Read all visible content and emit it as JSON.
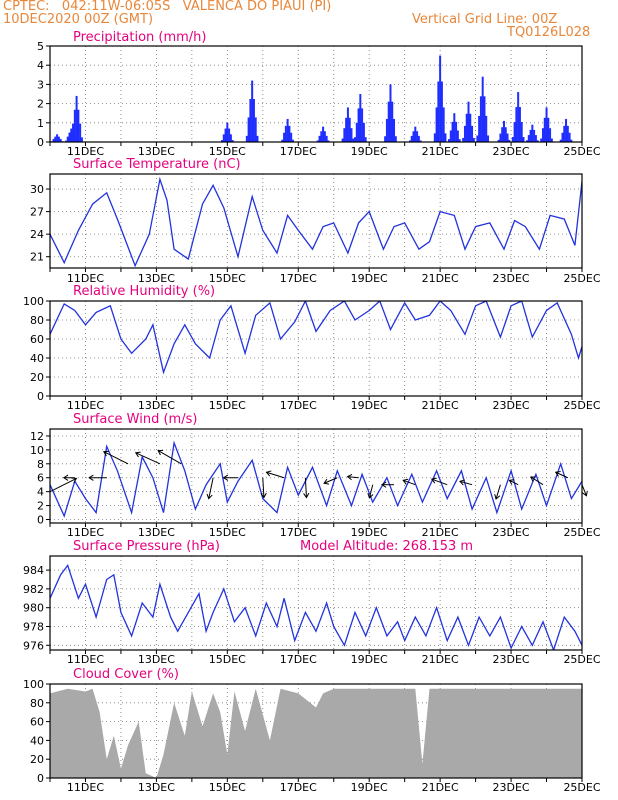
{
  "header": {
    "line1": "CPTEC:   042:11W-06:05S   VALENCA DO PIAUI (PI)",
    "line2": "10DEC2020 00Z (GMT)",
    "grid_note": "Vertical Grid Line: 00Z",
    "run_code": "TQ0126L028"
  },
  "model_altitude": "Model Altitude: 268.153 m",
  "colors": {
    "header": "#e8873a",
    "title": "#e6007e",
    "line": "#2233dd",
    "bar": "#1f2eff",
    "cloud": "#a9a9a9",
    "arrow": "#000000"
  },
  "chart_data": [
    {
      "type": "bar",
      "title": "Precipitation (mm/h)",
      "ylim": [
        0,
        5
      ],
      "yticks": [
        0,
        1,
        2,
        3,
        4,
        5
      ],
      "xlabel_ticks": [
        "11DEC",
        "13DEC",
        "15DEC",
        "17DEC",
        "19DEC",
        "21DEC",
        "23DEC",
        "25DEC"
      ],
      "xlim_days": [
        10,
        25
      ],
      "grid": true,
      "peaks": [
        {
          "day": 10.2,
          "value": 0.4
        },
        {
          "day": 10.6,
          "value": 0.7
        },
        {
          "day": 10.75,
          "value": 2.4
        },
        {
          "day": 15.0,
          "value": 1.0
        },
        {
          "day": 15.7,
          "value": 3.2
        },
        {
          "day": 16.7,
          "value": 1.2
        },
        {
          "day": 17.7,
          "value": 0.8
        },
        {
          "day": 18.4,
          "value": 1.8
        },
        {
          "day": 18.75,
          "value": 2.5
        },
        {
          "day": 19.6,
          "value": 3.0
        },
        {
          "day": 20.3,
          "value": 0.8
        },
        {
          "day": 21.0,
          "value": 4.5
        },
        {
          "day": 21.4,
          "value": 1.5
        },
        {
          "day": 21.8,
          "value": 2.1
        },
        {
          "day": 22.2,
          "value": 3.4
        },
        {
          "day": 22.8,
          "value": 1.1
        },
        {
          "day": 23.2,
          "value": 2.6
        },
        {
          "day": 23.6,
          "value": 0.9
        },
        {
          "day": 24.0,
          "value": 1.8
        },
        {
          "day": 24.55,
          "value": 1.2
        }
      ]
    },
    {
      "type": "line",
      "title": "Surface Temperature (nC)",
      "ylim": [
        19.5,
        32
      ],
      "yticks": [
        21,
        24,
        27,
        30
      ],
      "xlabel_ticks": [
        "11DEC",
        "13DEC",
        "15DEC",
        "17DEC",
        "19DEC",
        "21DEC",
        "23DEC",
        "25DEC"
      ],
      "xlim_days": [
        10,
        25
      ],
      "grid": true,
      "points": [
        [
          10.0,
          24.0
        ],
        [
          10.4,
          20.2
        ],
        [
          10.8,
          24.5
        ],
        [
          11.2,
          28.0
        ],
        [
          11.6,
          29.5
        ],
        [
          11.9,
          26.0
        ],
        [
          12.4,
          19.8
        ],
        [
          12.8,
          24.0
        ],
        [
          13.1,
          31.3
        ],
        [
          13.3,
          28.5
        ],
        [
          13.5,
          22.0
        ],
        [
          13.9,
          20.7
        ],
        [
          14.3,
          28.0
        ],
        [
          14.6,
          30.5
        ],
        [
          14.9,
          27.5
        ],
        [
          15.3,
          21.0
        ],
        [
          15.7,
          29.0
        ],
        [
          16.0,
          24.5
        ],
        [
          16.4,
          21.5
        ],
        [
          16.7,
          26.5
        ],
        [
          17.0,
          24.5
        ],
        [
          17.4,
          22.0
        ],
        [
          17.7,
          25.0
        ],
        [
          18.0,
          25.5
        ],
        [
          18.4,
          21.5
        ],
        [
          18.7,
          25.5
        ],
        [
          19.0,
          27.0
        ],
        [
          19.4,
          22.0
        ],
        [
          19.7,
          25.0
        ],
        [
          20.0,
          25.5
        ],
        [
          20.4,
          22.0
        ],
        [
          20.7,
          23.0
        ],
        [
          21.0,
          27.0
        ],
        [
          21.4,
          26.5
        ],
        [
          21.7,
          22.0
        ],
        [
          22.0,
          25.0
        ],
        [
          22.4,
          25.5
        ],
        [
          22.8,
          22.0
        ],
        [
          23.1,
          25.8
        ],
        [
          23.4,
          25.0
        ],
        [
          23.8,
          22.0
        ],
        [
          24.1,
          26.5
        ],
        [
          24.5,
          26.0
        ],
        [
          24.8,
          22.5
        ],
        [
          25.0,
          31.0
        ]
      ]
    },
    {
      "type": "line",
      "title": "Relative Humidity (%)",
      "ylim": [
        0,
        100
      ],
      "yticks": [
        0,
        20,
        40,
        60,
        80,
        100
      ],
      "xlabel_ticks": [
        "11DEC",
        "13DEC",
        "15DEC",
        "17DEC",
        "19DEC",
        "21DEC",
        "23DEC",
        "25DEC"
      ],
      "xlim_days": [
        10,
        25
      ],
      "grid": true,
      "points": [
        [
          10.0,
          65.0
        ],
        [
          10.4,
          97.0
        ],
        [
          10.7,
          90.0
        ],
        [
          11.0,
          75.0
        ],
        [
          11.3,
          88.0
        ],
        [
          11.7,
          95.0
        ],
        [
          12.0,
          60.0
        ],
        [
          12.3,
          45.0
        ],
        [
          12.7,
          60.0
        ],
        [
          12.9,
          75.0
        ],
        [
          13.2,
          25.0
        ],
        [
          13.5,
          55.0
        ],
        [
          13.8,
          75.0
        ],
        [
          14.1,
          55.0
        ],
        [
          14.5,
          40.0
        ],
        [
          14.8,
          80.0
        ],
        [
          15.1,
          95.0
        ],
        [
          15.5,
          45.0
        ],
        [
          15.8,
          85.0
        ],
        [
          16.2,
          98.0
        ],
        [
          16.5,
          60.0
        ],
        [
          16.9,
          78.0
        ],
        [
          17.2,
          100.0
        ],
        [
          17.5,
          68.0
        ],
        [
          17.9,
          90.0
        ],
        [
          18.3,
          100.0
        ],
        [
          18.6,
          80.0
        ],
        [
          19.0,
          90.0
        ],
        [
          19.3,
          100.0
        ],
        [
          19.6,
          70.0
        ],
        [
          20.0,
          98.0
        ],
        [
          20.3,
          80.0
        ],
        [
          20.7,
          85.0
        ],
        [
          21.0,
          100.0
        ],
        [
          21.3,
          90.0
        ],
        [
          21.7,
          65.0
        ],
        [
          22.0,
          95.0
        ],
        [
          22.3,
          100.0
        ],
        [
          22.7,
          62.0
        ],
        [
          23.0,
          95.0
        ],
        [
          23.3,
          100.0
        ],
        [
          23.6,
          62.0
        ],
        [
          24.0,
          90.0
        ],
        [
          24.3,
          98.0
        ],
        [
          24.7,
          65.0
        ],
        [
          24.9,
          40.0
        ],
        [
          25.0,
          52.0
        ]
      ]
    },
    {
      "type": "line",
      "title": "Surface Wind (m/s)",
      "ylim": [
        -0.5,
        13
      ],
      "yticks": [
        0,
        2,
        4,
        6,
        8,
        10,
        12
      ],
      "xlabel_ticks": [
        "11DEC",
        "13DEC",
        "15DEC",
        "17DEC",
        "19DEC",
        "21DEC",
        "23DEC",
        "25DEC"
      ],
      "xlim_days": [
        10,
        25
      ],
      "grid": true,
      "points": [
        [
          10.0,
          5.0
        ],
        [
          10.4,
          0.5
        ],
        [
          10.7,
          5.5
        ],
        [
          11.0,
          3.0
        ],
        [
          11.3,
          1.0
        ],
        [
          11.6,
          10.5
        ],
        [
          11.9,
          7.0
        ],
        [
          12.3,
          1.0
        ],
        [
          12.6,
          9.0
        ],
        [
          12.9,
          6.0
        ],
        [
          13.2,
          1.0
        ],
        [
          13.5,
          11.0
        ],
        [
          13.8,
          7.0
        ],
        [
          14.1,
          1.5
        ],
        [
          14.4,
          5.0
        ],
        [
          14.8,
          8.0
        ],
        [
          15.0,
          2.5
        ],
        [
          15.3,
          5.5
        ],
        [
          15.7,
          8.5
        ],
        [
          16.0,
          3.0
        ],
        [
          16.4,
          1.0
        ],
        [
          16.7,
          7.5
        ],
        [
          17.0,
          3.5
        ],
        [
          17.4,
          7.5
        ],
        [
          17.8,
          2.0
        ],
        [
          18.1,
          7.0
        ],
        [
          18.5,
          2.0
        ],
        [
          18.8,
          6.5
        ],
        [
          19.1,
          2.5
        ],
        [
          19.5,
          6.0
        ],
        [
          19.8,
          2.0
        ],
        [
          20.2,
          6.5
        ],
        [
          20.5,
          2.5
        ],
        [
          20.9,
          7.0
        ],
        [
          21.2,
          3.0
        ],
        [
          21.6,
          7.0
        ],
        [
          21.9,
          1.5
        ],
        [
          22.3,
          6.0
        ],
        [
          22.6,
          1.0
        ],
        [
          23.0,
          7.0
        ],
        [
          23.3,
          1.5
        ],
        [
          23.7,
          6.5
        ],
        [
          24.0,
          2.0
        ],
        [
          24.4,
          8.0
        ],
        [
          24.7,
          3.0
        ],
        [
          25.0,
          5.5
        ]
      ],
      "wind_vectors": [
        {
          "day": 10.0,
          "speed": 4.0,
          "u": 1.2,
          "v": 0.6
        },
        {
          "day": 10.7,
          "speed": 6.0,
          "u": -0.5,
          "v": 0.0
        },
        {
          "day": 11.6,
          "speed": 6.0,
          "u": -0.8,
          "v": 0.0
        },
        {
          "day": 12.2,
          "speed": 8.0,
          "u": -1.1,
          "v": 0.55
        },
        {
          "day": 13.1,
          "speed": 8.0,
          "u": -1.1,
          "v": 0.5
        },
        {
          "day": 13.7,
          "speed": 8.0,
          "u": -1.05,
          "v": 0.6
        },
        {
          "day": 14.6,
          "speed": 6.0,
          "u": -0.2,
          "v": -0.95
        },
        {
          "day": 15.3,
          "speed": 6.0,
          "u": -0.65,
          "v": 0.0
        },
        {
          "day": 16.0,
          "speed": 6.0,
          "u": 0.05,
          "v": -0.9
        },
        {
          "day": 16.6,
          "speed": 6.0,
          "u": -0.8,
          "v": 0.25
        },
        {
          "day": 17.2,
          "speed": 6.0,
          "u": 0.05,
          "v": -0.9
        },
        {
          "day": 18.1,
          "speed": 6.0,
          "u": -0.6,
          "v": -0.25
        },
        {
          "day": 18.7,
          "speed": 6.0,
          "u": -0.5,
          "v": 0.05
        },
        {
          "day": 19.1,
          "speed": 5.0,
          "u": -0.15,
          "v": -0.6
        },
        {
          "day": 19.7,
          "speed": 5.0,
          "u": -0.55,
          "v": 0.0
        },
        {
          "day": 20.3,
          "speed": 5.0,
          "u": -0.55,
          "v": 0.2
        },
        {
          "day": 21.2,
          "speed": 5.0,
          "u": -0.7,
          "v": 0.25
        },
        {
          "day": 21.9,
          "speed": 5.0,
          "u": -0.55,
          "v": 0.15
        },
        {
          "day": 22.7,
          "speed": 5.0,
          "u": -0.2,
          "v": -0.65
        },
        {
          "day": 23.2,
          "speed": 5.0,
          "u": -0.4,
          "v": 0.2
        },
        {
          "day": 23.9,
          "speed": 5.0,
          "u": -0.55,
          "v": 0.35
        },
        {
          "day": 24.6,
          "speed": 6.0,
          "u": -0.55,
          "v": 0.25
        },
        {
          "day": 25.0,
          "speed": 5.0,
          "u": 0.2,
          "v": -0.5
        }
      ]
    },
    {
      "type": "line",
      "title": "Surface Pressure (hPa)",
      "ylim": [
        975.5,
        985.5
      ],
      "yticks": [
        976,
        978,
        980,
        982,
        984
      ],
      "xlabel_ticks": [
        "11DEC",
        "13DEC",
        "15DEC",
        "17DEC",
        "19DEC",
        "21DEC",
        "23DEC",
        "25DEC"
      ],
      "xlim_days": [
        10,
        25
      ],
      "grid": true,
      "points": [
        [
          10.0,
          981.0
        ],
        [
          10.3,
          983.5
        ],
        [
          10.5,
          984.5
        ],
        [
          10.8,
          981.0
        ],
        [
          11.0,
          982.5
        ],
        [
          11.3,
          979.0
        ],
        [
          11.6,
          983.0
        ],
        [
          11.8,
          983.5
        ],
        [
          12.0,
          979.5
        ],
        [
          12.3,
          977.0
        ],
        [
          12.6,
          980.5
        ],
        [
          12.9,
          979.0
        ],
        [
          13.1,
          982.5
        ],
        [
          13.4,
          979.0
        ],
        [
          13.6,
          977.5
        ],
        [
          13.9,
          979.5
        ],
        [
          14.2,
          981.5
        ],
        [
          14.4,
          977.5
        ],
        [
          14.6,
          979.5
        ],
        [
          14.9,
          982.0
        ],
        [
          15.2,
          978.5
        ],
        [
          15.5,
          980.0
        ],
        [
          15.8,
          977.0
        ],
        [
          16.1,
          980.5
        ],
        [
          16.4,
          978.0
        ],
        [
          16.6,
          981.0
        ],
        [
          16.9,
          976.5
        ],
        [
          17.2,
          979.5
        ],
        [
          17.5,
          977.5
        ],
        [
          17.8,
          980.5
        ],
        [
          18.0,
          978.0
        ],
        [
          18.3,
          976.0
        ],
        [
          18.6,
          979.5
        ],
        [
          18.9,
          977.0
        ],
        [
          19.2,
          980.0
        ],
        [
          19.5,
          977.0
        ],
        [
          19.8,
          978.5
        ],
        [
          20.0,
          976.5
        ],
        [
          20.3,
          979.0
        ],
        [
          20.6,
          977.0
        ],
        [
          20.9,
          980.0
        ],
        [
          21.2,
          976.5
        ],
        [
          21.5,
          979.0
        ],
        [
          21.8,
          976.0
        ],
        [
          22.1,
          979.0
        ],
        [
          22.4,
          977.0
        ],
        [
          22.7,
          979.0
        ],
        [
          23.0,
          975.7
        ],
        [
          23.3,
          978.0
        ],
        [
          23.6,
          976.0
        ],
        [
          23.9,
          978.5
        ],
        [
          24.2,
          975.5
        ],
        [
          24.5,
          979.0
        ],
        [
          24.8,
          977.5
        ],
        [
          25.0,
          976.0
        ]
      ]
    },
    {
      "type": "area",
      "title": "Cloud Cover (%)",
      "ylim": [
        0,
        100
      ],
      "yticks": [
        0,
        20,
        40,
        60,
        80,
        100
      ],
      "xlabel_ticks": [
        "11DEC",
        "13DEC",
        "15DEC",
        "17DEC",
        "19DEC",
        "21DEC",
        "23DEC",
        "25DEC"
      ],
      "xlim_days": [
        10,
        25
      ],
      "grid": true,
      "points": [
        [
          10.0,
          90.0
        ],
        [
          10.5,
          95.0
        ],
        [
          11.0,
          92.0
        ],
        [
          11.2,
          95.0
        ],
        [
          11.4,
          70.0
        ],
        [
          11.6,
          20.0
        ],
        [
          11.8,
          45.0
        ],
        [
          12.0,
          10.0
        ],
        [
          12.2,
          35.0
        ],
        [
          12.5,
          60.0
        ],
        [
          12.7,
          5.0
        ],
        [
          13.0,
          0.0
        ],
        [
          13.2,
          25.0
        ],
        [
          13.5,
          80.0
        ],
        [
          13.8,
          45.0
        ],
        [
          14.0,
          92.0
        ],
        [
          14.3,
          55.0
        ],
        [
          14.6,
          90.0
        ],
        [
          14.8,
          70.0
        ],
        [
          15.0,
          25.0
        ],
        [
          15.2,
          92.0
        ],
        [
          15.5,
          50.0
        ],
        [
          15.8,
          95.0
        ],
        [
          16.2,
          40.0
        ],
        [
          16.5,
          95.0
        ],
        [
          17.0,
          90.0
        ],
        [
          17.5,
          75.0
        ],
        [
          17.7,
          90.0
        ],
        [
          18.0,
          95.0
        ],
        [
          20.3,
          95.0
        ],
        [
          20.5,
          15.0
        ],
        [
          20.7,
          95.0
        ],
        [
          25.0,
          95.0
        ]
      ]
    }
  ]
}
